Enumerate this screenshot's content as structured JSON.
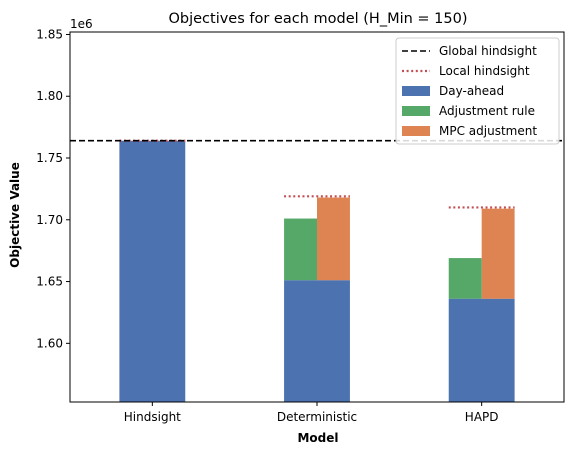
{
  "chart_data": {
    "type": "bar",
    "title": "Objectives for each model (H_Min = 150)",
    "xlabel": "Model",
    "ylabel": "Objective Value",
    "y_offset_label": "1e6",
    "ylim": [
      1.5525,
      1.852
    ],
    "y_ticks": [
      1.6,
      1.65,
      1.7,
      1.75,
      1.8,
      1.85
    ],
    "y_tick_labels": [
      "1.60",
      "1.65",
      "1.70",
      "1.75",
      "1.80",
      "1.85"
    ],
    "categories": [
      "Hindsight",
      "Deterministic",
      "HAPD"
    ],
    "series": [
      {
        "name": "Day-ahead",
        "color": "#4c72b0",
        "values": [
          1.764,
          1.651,
          1.636
        ]
      },
      {
        "name": "Adjustment rule",
        "color": "#55a868",
        "base": [
          null,
          1.651,
          1.636
        ],
        "values": [
          null,
          1.701,
          1.669
        ]
      },
      {
        "name": "MPC adjustment",
        "color": "#dd8452",
        "base": [
          null,
          1.651,
          1.636
        ],
        "values": [
          null,
          1.718,
          1.709
        ]
      }
    ],
    "global_hindsight": {
      "name": "Global hindsight",
      "value": 1.764,
      "color": "#000000",
      "style": "dashed"
    },
    "local_hindsight": {
      "name": "Local hindsight",
      "values": [
        1.764,
        1.719,
        1.71
      ],
      "color": "#c44e52",
      "style": "dotted"
    },
    "legend_position": "top-right",
    "grid": false
  }
}
